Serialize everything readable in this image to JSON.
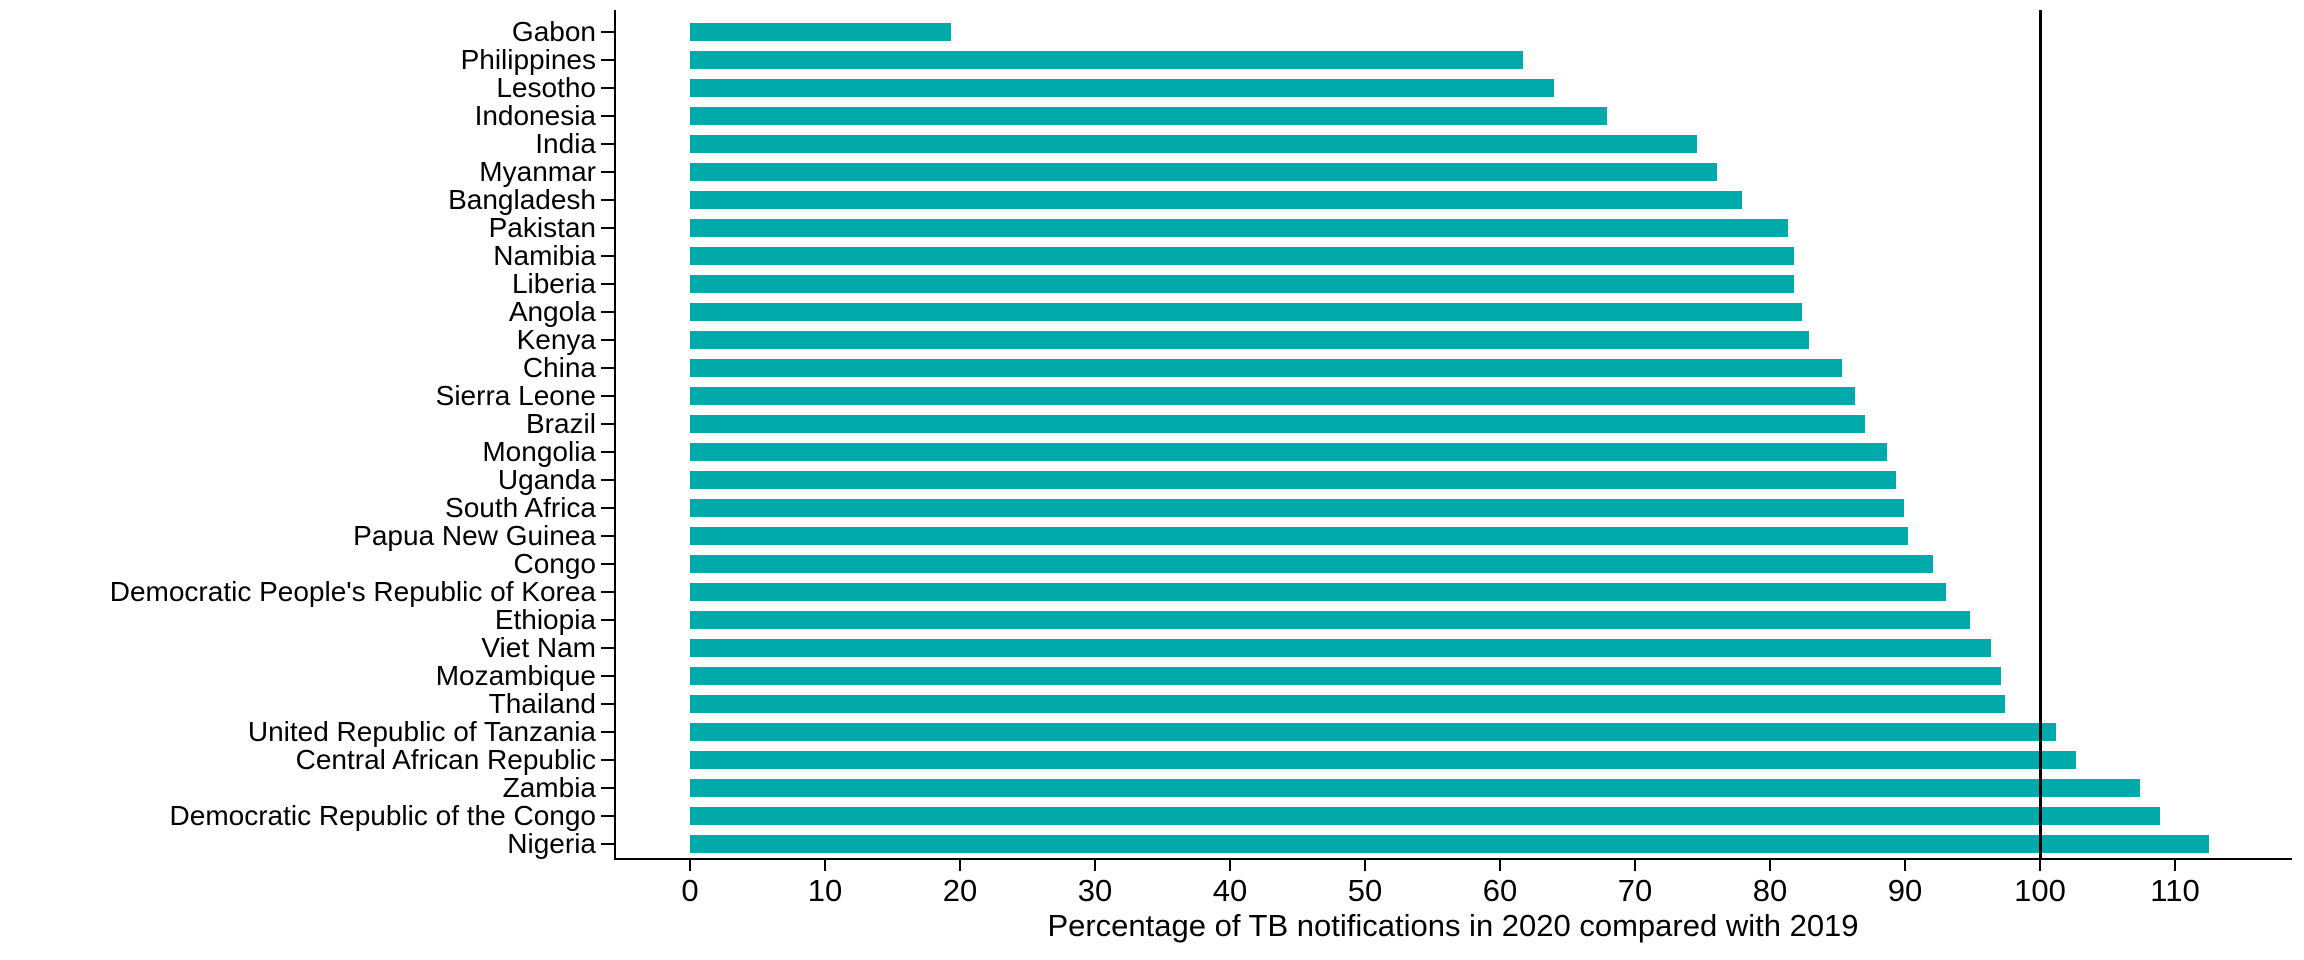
{
  "chart_data": {
    "type": "bar",
    "orientation": "horizontal",
    "title": "",
    "xlabel": "Percentage of TB notifications in 2020 compared with 2019",
    "ylabel": "",
    "categories": [
      "Gabon",
      "Philippines",
      "Lesotho",
      "Indonesia",
      "India",
      "Myanmar",
      "Bangladesh",
      "Pakistan",
      "Namibia",
      "Liberia",
      "Angola",
      "Kenya",
      "China",
      "Sierra Leone",
      "Brazil",
      "Mongolia",
      "Uganda",
      "South Africa",
      "Papua New Guinea",
      "Congo",
      "Democratic People's Republic of Korea",
      "Ethiopia",
      "Viet Nam",
      "Mozambique",
      "Thailand",
      "United Republic of Tanzania",
      "Central African Republic",
      "Zambia",
      "Democratic Republic of the Congo",
      "Nigeria"
    ],
    "values": [
      19.3,
      61.7,
      64.0,
      67.9,
      74.6,
      76.1,
      77.9,
      81.3,
      81.8,
      81.8,
      82.4,
      82.9,
      85.3,
      86.3,
      87.0,
      88.7,
      89.3,
      89.9,
      90.2,
      92.1,
      93.0,
      94.8,
      96.4,
      97.1,
      97.4,
      101.2,
      102.7,
      107.4,
      108.9,
      112.5
    ],
    "xticks": [
      0,
      10,
      20,
      30,
      40,
      50,
      60,
      70,
      80,
      90,
      100,
      110
    ],
    "xlim": [
      -6,
      118
    ],
    "refline_x": 100,
    "grid": false,
    "legend": false,
    "colors": {
      "bar": "#00A9AA",
      "axis": "#000000",
      "text": "#000000",
      "refline": "#000000",
      "background": "#FFFFFF"
    }
  }
}
